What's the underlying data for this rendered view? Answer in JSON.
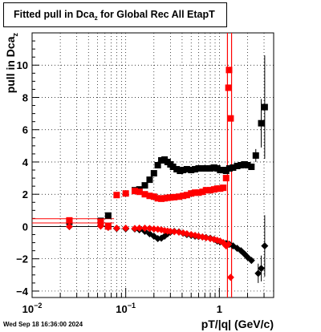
{
  "title": {
    "main": "Fitted pull in Dca",
    "sub": "z",
    "suffix": " for Global Rec All EtapT"
  },
  "stamp": "Wed Sep 18 16:36:00 2024",
  "colors": {
    "series_black": "#000000",
    "series_red": "#ff0000",
    "grid": "#000000"
  },
  "chart_data": {
    "type": "scatter",
    "title": "Fitted pull in Dca_z for Global Rec All EtapT",
    "xlabel": "pT/|q| (GeV/c)",
    "ylabel": "pull in Dca_z",
    "xscale": "log",
    "xlim": [
      0.01,
      3.8
    ],
    "ylim": [
      -4.4,
      12
    ],
    "grid": true,
    "x_ticks": [
      {
        "value": 0.01,
        "label": "10",
        "sup": "−2"
      },
      {
        "value": 0.1,
        "label": "10",
        "sup": "−1"
      },
      {
        "value": 1,
        "label": "1",
        "sup": ""
      }
    ],
    "y_ticks": [
      -4,
      -2,
      0,
      2,
      4,
      6,
      8,
      10
    ],
    "reference_lines": {
      "vertical_x": [
        1.22,
        1.35
      ],
      "horizontal_y": [
        0.22,
        0.48
      ],
      "horizontal_xmax": 0.075
    },
    "series": [
      {
        "marker": "square",
        "color": "black",
        "points": [
          [
            0.025,
            0.3
          ],
          [
            0.054,
            0.35
          ],
          [
            0.065,
            0.68
          ],
          [
            0.125,
            2.25
          ],
          [
            0.14,
            2.3
          ],
          [
            0.16,
            2.55
          ],
          [
            0.18,
            2.9
          ],
          [
            0.2,
            3.3
          ],
          [
            0.22,
            3.8
          ],
          [
            0.24,
            4.1
          ],
          [
            0.26,
            4.15
          ],
          [
            0.28,
            4.0
          ],
          [
            0.3,
            3.85
          ],
          [
            0.32,
            3.7
          ],
          [
            0.35,
            3.55
          ],
          [
            0.38,
            3.45
          ],
          [
            0.41,
            3.5
          ],
          [
            0.45,
            3.55
          ],
          [
            0.5,
            3.5
          ],
          [
            0.55,
            3.55
          ],
          [
            0.6,
            3.6
          ],
          [
            0.66,
            3.6
          ],
          [
            0.72,
            3.6
          ],
          [
            0.8,
            3.6
          ],
          [
            0.88,
            3.65
          ],
          [
            0.95,
            3.6
          ],
          [
            1.02,
            3.5
          ],
          [
            1.1,
            3.5
          ],
          [
            1.18,
            3.45
          ],
          [
            1.28,
            3.6
          ],
          [
            1.4,
            3.65
          ],
          [
            1.55,
            3.75
          ],
          [
            1.7,
            3.8
          ],
          [
            1.85,
            3.85
          ],
          [
            2.0,
            3.8
          ],
          [
            2.2,
            3.7
          ],
          [
            2.45,
            4.4
          ],
          [
            2.8,
            6.4
          ],
          [
            3.05,
            7.4
          ]
        ],
        "errors": [
          [
            2.45,
            0.4
          ],
          [
            2.8,
            1.5
          ],
          [
            3.05,
            3.2
          ]
        ]
      },
      {
        "marker": "circle",
        "color": "black",
        "points": [
          [
            0.025,
            0.0
          ],
          [
            0.054,
            0.05
          ],
          [
            0.065,
            -0.05
          ],
          [
            0.08,
            -0.12
          ],
          [
            0.1,
            -0.14
          ],
          [
            0.125,
            -0.15
          ],
          [
            0.14,
            -0.2
          ],
          [
            0.16,
            -0.3
          ],
          [
            0.18,
            -0.45
          ],
          [
            0.2,
            -0.6
          ],
          [
            0.22,
            -0.75
          ],
          [
            0.24,
            -0.72
          ],
          [
            0.26,
            -0.6
          ],
          [
            0.28,
            -0.45
          ],
          [
            0.3,
            -0.35
          ],
          [
            0.33,
            -0.3
          ],
          [
            0.37,
            -0.33
          ],
          [
            0.41,
            -0.42
          ],
          [
            0.45,
            -0.5
          ],
          [
            0.5,
            -0.55
          ],
          [
            0.55,
            -0.6
          ],
          [
            0.6,
            -0.62
          ],
          [
            0.66,
            -0.65
          ],
          [
            0.72,
            -0.68
          ],
          [
            0.8,
            -0.72
          ],
          [
            0.88,
            -0.8
          ],
          [
            0.95,
            -0.9
          ],
          [
            1.02,
            -0.95
          ],
          [
            1.1,
            -1.0
          ],
          [
            1.18,
            -1.05
          ],
          [
            1.28,
            -1.1
          ],
          [
            1.4,
            -1.2
          ],
          [
            1.55,
            -1.35
          ],
          [
            1.7,
            -1.5
          ],
          [
            1.85,
            -1.7
          ],
          [
            2.0,
            -1.9
          ],
          [
            2.2,
            -2.1
          ],
          [
            2.6,
            -2.9
          ],
          [
            2.8,
            -2.6
          ],
          [
            3.05,
            -1.2
          ]
        ],
        "errors": [
          [
            2.6,
            0.6
          ],
          [
            2.8,
            0.8
          ],
          [
            3.05,
            1.9
          ]
        ]
      },
      {
        "marker": "square",
        "color": "red",
        "points": [
          [
            0.025,
            0.38
          ],
          [
            0.054,
            0.3
          ],
          [
            0.065,
            0.0
          ],
          [
            0.08,
            1.95
          ],
          [
            0.1,
            2.05
          ],
          [
            0.125,
            2.2
          ],
          [
            0.14,
            2.15
          ],
          [
            0.16,
            2.0
          ],
          [
            0.18,
            1.9
          ],
          [
            0.2,
            1.85
          ],
          [
            0.22,
            1.75
          ],
          [
            0.24,
            1.72
          ],
          [
            0.26,
            1.75
          ],
          [
            0.28,
            1.78
          ],
          [
            0.3,
            1.8
          ],
          [
            0.33,
            1.82
          ],
          [
            0.37,
            1.85
          ],
          [
            0.41,
            1.9
          ],
          [
            0.45,
            1.95
          ],
          [
            0.5,
            2.05
          ],
          [
            0.55,
            2.1
          ],
          [
            0.6,
            2.1
          ],
          [
            0.66,
            2.15
          ],
          [
            0.72,
            2.25
          ],
          [
            0.8,
            2.25
          ],
          [
            0.88,
            2.3
          ],
          [
            0.95,
            2.35
          ],
          [
            1.02,
            2.35
          ],
          [
            1.1,
            2.4
          ],
          [
            1.18,
            3.0
          ],
          [
            1.25,
            8.6
          ],
          [
            1.27,
            9.7
          ],
          [
            1.32,
            6.7
          ]
        ],
        "errors": []
      },
      {
        "marker": "circle",
        "color": "red",
        "points": [
          [
            0.025,
            0.0
          ],
          [
            0.054,
            0.02
          ],
          [
            0.065,
            -0.05
          ],
          [
            0.08,
            -0.1
          ],
          [
            0.1,
            -0.1
          ],
          [
            0.125,
            -0.12
          ],
          [
            0.14,
            -0.1
          ],
          [
            0.16,
            -0.1
          ],
          [
            0.18,
            -0.12
          ],
          [
            0.2,
            -0.15
          ],
          [
            0.22,
            -0.17
          ],
          [
            0.24,
            -0.2
          ],
          [
            0.26,
            -0.25
          ],
          [
            0.28,
            -0.28
          ],
          [
            0.3,
            -0.3
          ],
          [
            0.33,
            -0.32
          ],
          [
            0.37,
            -0.35
          ],
          [
            0.41,
            -0.4
          ],
          [
            0.45,
            -0.45
          ],
          [
            0.5,
            -0.5
          ],
          [
            0.55,
            -0.55
          ],
          [
            0.6,
            -0.6
          ],
          [
            0.66,
            -0.65
          ],
          [
            0.72,
            -0.7
          ],
          [
            0.8,
            -0.75
          ],
          [
            0.88,
            -0.8
          ],
          [
            0.95,
            -0.85
          ],
          [
            1.02,
            -0.9
          ],
          [
            1.1,
            -1.0
          ],
          [
            1.18,
            -1.2
          ],
          [
            1.25,
            -1.1
          ],
          [
            1.32,
            -3.15
          ]
        ],
        "errors": []
      }
    ]
  }
}
